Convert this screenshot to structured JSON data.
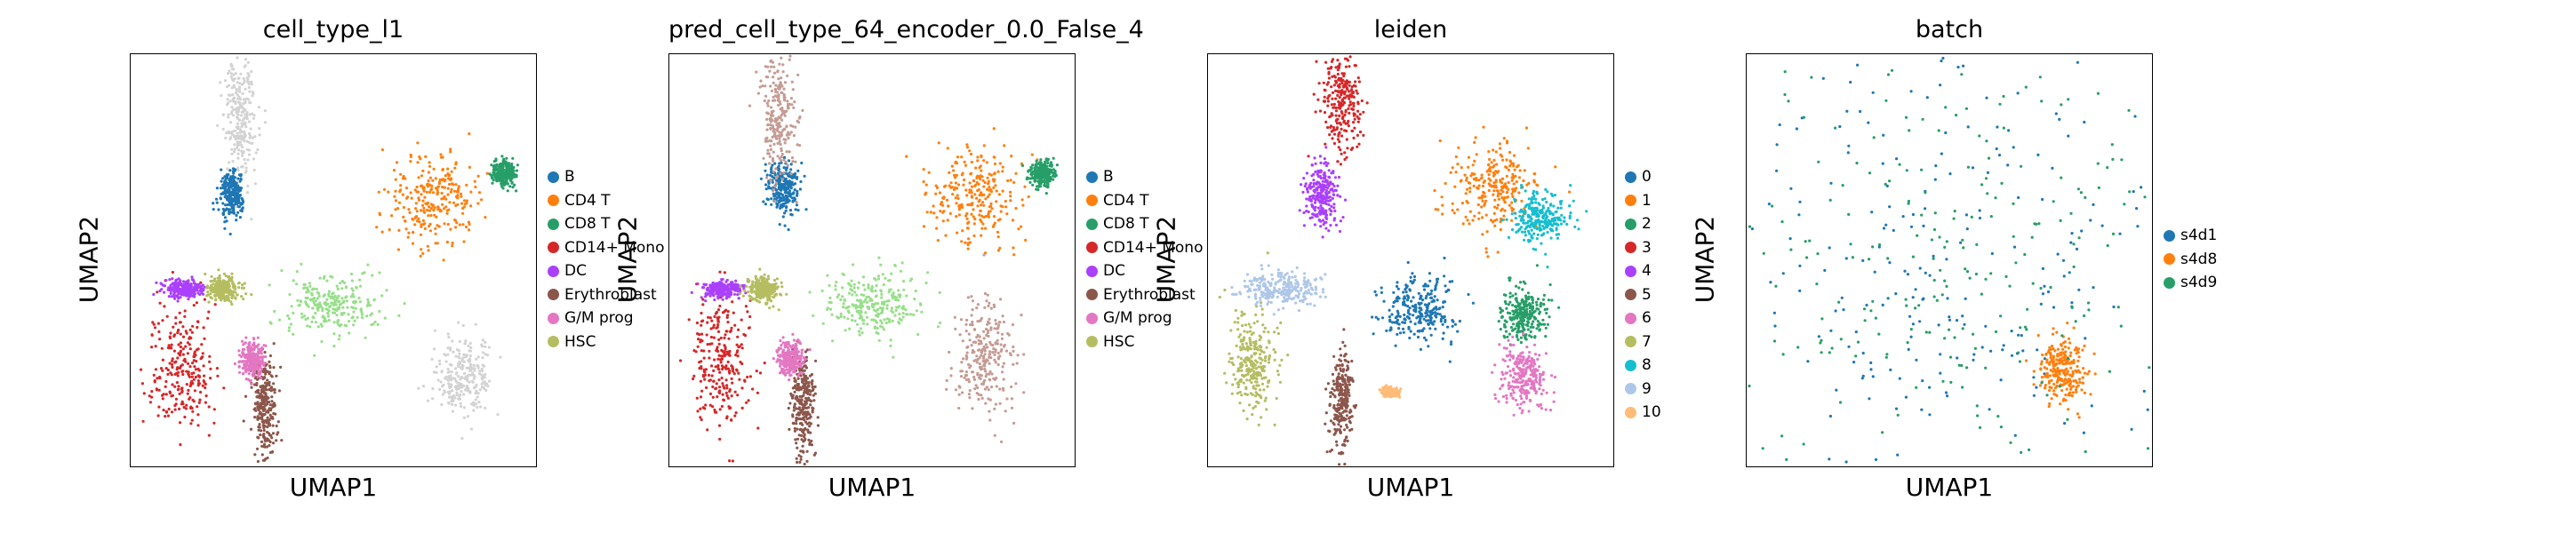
{
  "chart_data": [
    {
      "type": "scatter",
      "title": "cell_type_l1",
      "xlabel": "UMAP1",
      "ylabel": "UMAP2",
      "legend_placement": "right",
      "legend": [
        {
          "name": "B",
          "color": "#1f77b4"
        },
        {
          "name": "CD4 T",
          "color": "#ff7f0e"
        },
        {
          "name": "CD8 T",
          "color": "#279e68"
        },
        {
          "name": "CD14+ Mono",
          "color": "#d62728"
        },
        {
          "name": "DC",
          "color": "#aa40fc"
        },
        {
          "name": "Erythroblast",
          "color": "#8c564b"
        },
        {
          "name": "G/M prog",
          "color": "#e377c2"
        },
        {
          "name": "HSC",
          "color": "#b5bd61"
        }
      ],
      "clusters": [
        {
          "label": "B",
          "x": 0.25,
          "y": 0.34,
          "sx": 0.015,
          "sy": 0.03
        },
        {
          "label": "CD4 T",
          "x": 0.75,
          "y": 0.35,
          "sx": 0.06,
          "sy": 0.06
        },
        {
          "label": "CD8 T",
          "x": 0.92,
          "y": 0.29,
          "sx": 0.015,
          "sy": 0.015
        },
        {
          "label": "CD14+ Mono",
          "x": 0.13,
          "y": 0.75,
          "sx": 0.04,
          "sy": 0.08
        },
        {
          "label": "DC",
          "x": 0.13,
          "y": 0.57,
          "sx": 0.025,
          "sy": 0.01
        },
        {
          "label": "Erythroblast",
          "x": 0.33,
          "y": 0.85,
          "sx": 0.015,
          "sy": 0.06
        },
        {
          "label": "G/M prog",
          "x": 0.3,
          "y": 0.74,
          "sx": 0.015,
          "sy": 0.02
        },
        {
          "label": "HSC",
          "x": 0.23,
          "y": 0.57,
          "sx": 0.02,
          "sy": 0.015
        },
        {
          "label": "unlabeled",
          "x": 0.27,
          "y": 0.15,
          "sx": 0.02,
          "sy": 0.08,
          "color": "#d3d3d3"
        },
        {
          "label": "unlabeled",
          "x": 0.82,
          "y": 0.78,
          "sx": 0.035,
          "sy": 0.05,
          "color": "#d3d3d3"
        },
        {
          "label": "unlabeled",
          "x": 0.5,
          "y": 0.61,
          "sx": 0.06,
          "sy": 0.04,
          "color": "#98df8a"
        }
      ]
    },
    {
      "type": "scatter",
      "title": "pred_cell_type_64_encoder_0.0_False_4",
      "xlabel": "UMAP1",
      "ylabel": "UMAP2",
      "legend_placement": "right",
      "legend": [
        {
          "name": "B",
          "color": "#1f77b4"
        },
        {
          "name": "CD4 T",
          "color": "#ff7f0e"
        },
        {
          "name": "CD8 T",
          "color": "#279e68"
        },
        {
          "name": "CD14+ Mono",
          "color": "#d62728"
        },
        {
          "name": "DC",
          "color": "#aa40fc"
        },
        {
          "name": "Erythroblast",
          "color": "#8c564b"
        },
        {
          "name": "G/M prog",
          "color": "#e377c2"
        },
        {
          "name": "HSC",
          "color": "#b5bd61"
        }
      ],
      "clusters": [
        {
          "label": "B",
          "x": 0.28,
          "y": 0.32,
          "sx": 0.02,
          "sy": 0.03
        },
        {
          "label": "CD4 T",
          "x": 0.75,
          "y": 0.35,
          "sx": 0.06,
          "sy": 0.06
        },
        {
          "label": "CD8 T",
          "x": 0.92,
          "y": 0.29,
          "sx": 0.015,
          "sy": 0.015
        },
        {
          "label": "CD14+ Mono",
          "x": 0.13,
          "y": 0.75,
          "sx": 0.04,
          "sy": 0.08
        },
        {
          "label": "DC",
          "x": 0.13,
          "y": 0.57,
          "sx": 0.025,
          "sy": 0.01
        },
        {
          "label": "Erythroblast",
          "x": 0.33,
          "y": 0.85,
          "sx": 0.015,
          "sy": 0.06
        },
        {
          "label": "G/M prog",
          "x": 0.3,
          "y": 0.74,
          "sx": 0.015,
          "sy": 0.02
        },
        {
          "label": "HSC",
          "x": 0.23,
          "y": 0.57,
          "sx": 0.02,
          "sy": 0.015
        },
        {
          "label": "unlabeled",
          "x": 0.27,
          "y": 0.15,
          "sx": 0.02,
          "sy": 0.08,
          "color": "#c49c94"
        },
        {
          "label": "unlabeled",
          "x": 0.78,
          "y": 0.73,
          "sx": 0.035,
          "sy": 0.07,
          "color": "#c49c94"
        },
        {
          "label": "unlabeled",
          "x": 0.5,
          "y": 0.61,
          "sx": 0.06,
          "sy": 0.04,
          "color": "#98df8a"
        }
      ]
    },
    {
      "type": "scatter",
      "title": "leiden",
      "xlabel": "UMAP1",
      "ylabel": "UMAP2",
      "legend_placement": "right",
      "legend": [
        {
          "name": "0",
          "color": "#1f77b4"
        },
        {
          "name": "1",
          "color": "#ff7f0e"
        },
        {
          "name": "2",
          "color": "#279e68"
        },
        {
          "name": "3",
          "color": "#d62728"
        },
        {
          "name": "4",
          "color": "#aa40fc"
        },
        {
          "name": "5",
          "color": "#8c564b"
        },
        {
          "name": "6",
          "color": "#e377c2"
        },
        {
          "name": "7",
          "color": "#b5bd61"
        },
        {
          "name": "8",
          "color": "#17becf"
        },
        {
          "name": "9",
          "color": "#aec7e8"
        },
        {
          "name": "10",
          "color": "#ffbb78"
        }
      ],
      "clusters": [
        {
          "label": "0",
          "x": 0.52,
          "y": 0.62,
          "sx": 0.05,
          "sy": 0.04
        },
        {
          "label": "1",
          "x": 0.71,
          "y": 0.32,
          "sx": 0.05,
          "sy": 0.05
        },
        {
          "label": "2",
          "x": 0.78,
          "y": 0.63,
          "sx": 0.03,
          "sy": 0.03
        },
        {
          "label": "3",
          "x": 0.33,
          "y": 0.12,
          "sx": 0.025,
          "sy": 0.06
        },
        {
          "label": "4",
          "x": 0.28,
          "y": 0.34,
          "sx": 0.02,
          "sy": 0.04
        },
        {
          "label": "5",
          "x": 0.33,
          "y": 0.85,
          "sx": 0.015,
          "sy": 0.06
        },
        {
          "label": "6",
          "x": 0.78,
          "y": 0.78,
          "sx": 0.03,
          "sy": 0.04
        },
        {
          "label": "7",
          "x": 0.11,
          "y": 0.75,
          "sx": 0.03,
          "sy": 0.06
        },
        {
          "label": "8",
          "x": 0.82,
          "y": 0.4,
          "sx": 0.035,
          "sy": 0.03
        },
        {
          "label": "9",
          "x": 0.18,
          "y": 0.57,
          "sx": 0.05,
          "sy": 0.02
        },
        {
          "label": "10",
          "x": 0.45,
          "y": 0.82,
          "sx": 0.01,
          "sy": 0.005
        }
      ]
    },
    {
      "type": "scatter",
      "title": "batch",
      "xlabel": "UMAP1",
      "ylabel": "UMAP2",
      "legend_placement": "right",
      "legend": [
        {
          "name": "s4d1",
          "color": "#1f77b4"
        },
        {
          "name": "s4d8",
          "color": "#ff7f0e"
        },
        {
          "name": "s4d9",
          "color": "#279e68"
        }
      ],
      "clusters": [
        {
          "label": "s4d1",
          "x": 0.5,
          "y": 0.5,
          "sx": 0.3,
          "sy": 0.3
        },
        {
          "label": "s4d8",
          "x": 0.78,
          "y": 0.77,
          "sx": 0.03,
          "sy": 0.04
        },
        {
          "label": "s4d9",
          "x": 0.5,
          "y": 0.5,
          "sx": 0.3,
          "sy": 0.3
        }
      ]
    }
  ]
}
